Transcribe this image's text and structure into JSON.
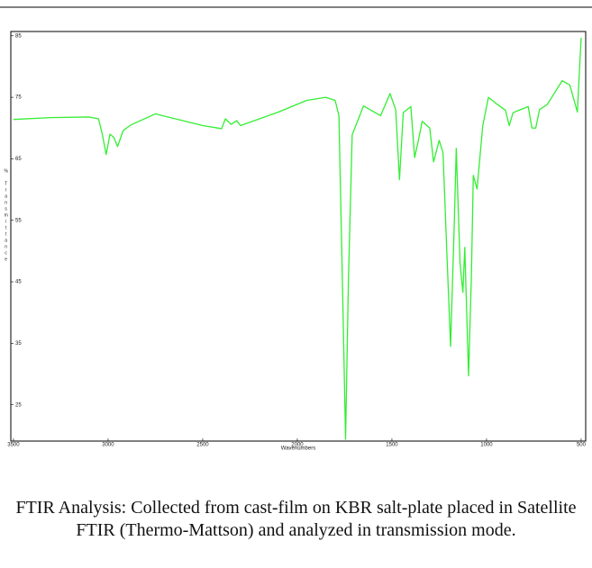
{
  "chart_data": {
    "type": "line",
    "ylabel": "% Transmittance",
    "xlabel": "Wavenumbers",
    "caption": "FTIR Analysis: Collected from cast-film on KBR salt-plate placed in Satellite FTIR (Thermo-Mattson) and analyzed in transmission mode.",
    "xlim": [
      3514,
      476
    ],
    "ylim": [
      19.1,
      85.7
    ],
    "xticks": [
      3500,
      3000,
      2500,
      2000,
      1500,
      1000,
      500
    ],
    "yticks": [
      85,
      75,
      65,
      55,
      45,
      35,
      25
    ],
    "series": [
      {
        "color": "#33ee33",
        "x": [
          3500,
          3300,
          3100,
          3050,
          3030,
          3010,
          2990,
          2970,
          2950,
          2920,
          2880,
          2750,
          2500,
          2400,
          2380,
          2350,
          2320,
          2300,
          2100,
          1950,
          1850,
          1800,
          1780,
          1760,
          1745,
          1730,
          1710,
          1650,
          1560,
          1510,
          1480,
          1460,
          1440,
          1400,
          1380,
          1360,
          1340,
          1300,
          1280,
          1250,
          1230,
          1210,
          1190,
          1170,
          1160,
          1140,
          1125,
          1115,
          1095,
          1080,
          1070,
          1050,
          1020,
          990,
          950,
          900,
          880,
          860,
          820,
          780,
          760,
          740,
          720,
          680,
          600,
          560,
          520,
          500
        ],
        "values": [
          71.4,
          71.7,
          71.8,
          71.5,
          68.9,
          65.7,
          69,
          68.5,
          67,
          69.6,
          70.5,
          72.3,
          70.4,
          69.9,
          71.5,
          70.6,
          71.2,
          70.4,
          72.6,
          74.5,
          75,
          74.5,
          72,
          42.6,
          19.4,
          45,
          68.9,
          73.6,
          72,
          75.6,
          73,
          61.6,
          72.5,
          73.5,
          65.2,
          68,
          71.1,
          70,
          64.5,
          68,
          66,
          49.9,
          34.5,
          55,
          66.7,
          48,
          43.3,
          50.6,
          29.7,
          46,
          62.3,
          60.1,
          70.4,
          75,
          74,
          72.9,
          70.4,
          72.5,
          73,
          73.5,
          70,
          70,
          73,
          73.8,
          77.7,
          77,
          72.6,
          84.7
        ]
      }
    ]
  }
}
